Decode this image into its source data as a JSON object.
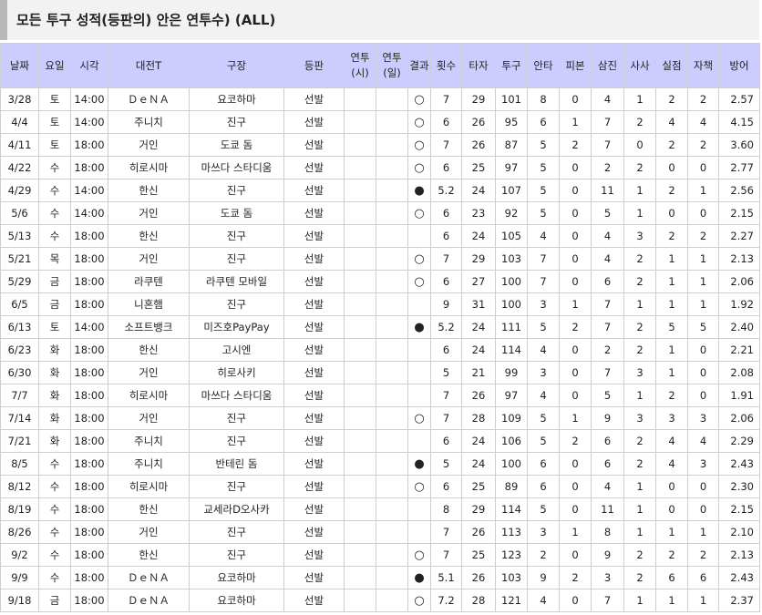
{
  "title": "모든 투구 성적(등판의) 안은 연투수) (ALL)",
  "table": {
    "headers": [
      "날짜",
      "요일",
      "시각",
      "대전T",
      "구장",
      "등판",
      "연투\n(시)",
      "연투\n(일)",
      "결과",
      "횟수",
      "타자",
      "투구",
      "안타",
      "피본",
      "삼진",
      "사사",
      "실점",
      "자책",
      "방어"
    ],
    "rows": [
      [
        "3/28",
        "토",
        "14:00",
        "ＤｅＮＡ",
        "요코하마",
        "선발",
        null,
        null,
        "○",
        "7",
        "29",
        "101",
        "8",
        "0",
        "4",
        "1",
        "2",
        "2",
        "2.57"
      ],
      [
        "4/4",
        "토",
        "14:00",
        "주니치",
        "진구",
        "선발",
        null,
        null,
        "○",
        "6",
        "26",
        "95",
        "6",
        "1",
        "7",
        "2",
        "4",
        "4",
        "4.15"
      ],
      [
        "4/11",
        "토",
        "18:00",
        "거인",
        "도쿄 돔",
        "선발",
        null,
        null,
        "○",
        "7",
        "26",
        "87",
        "5",
        "2",
        "7",
        "0",
        "2",
        "2",
        "3.60"
      ],
      [
        "4/22",
        "수",
        "18:00",
        "히로시마",
        "마쓰다 스타디움",
        "선발",
        null,
        null,
        "○",
        "6",
        "25",
        "97",
        "5",
        "0",
        "2",
        "2",
        "0",
        "0",
        "2.77"
      ],
      [
        "4/29",
        "수",
        "14:00",
        "한신",
        "진구",
        "선발",
        null,
        null,
        "●",
        "5.2",
        "24",
        "107",
        "5",
        "0",
        "11",
        "1",
        "2",
        "1",
        "2.56"
      ],
      [
        "5/6",
        "수",
        "14:00",
        "거인",
        "도쿄 돔",
        "선발",
        null,
        null,
        "○",
        "6",
        "23",
        "92",
        "5",
        "0",
        "5",
        "1",
        "0",
        "0",
        "2.15"
      ],
      [
        "5/13",
        "수",
        "18:00",
        "한신",
        "진구",
        "선발",
        null,
        null,
        null,
        "6",
        "24",
        "105",
        "4",
        "0",
        "4",
        "3",
        "2",
        "2",
        "2.27"
      ],
      [
        "5/21",
        "목",
        "18:00",
        "거인",
        "진구",
        "선발",
        null,
        null,
        "○",
        "7",
        "29",
        "103",
        "7",
        "0",
        "4",
        "2",
        "1",
        "1",
        "2.13"
      ],
      [
        "5/29",
        "금",
        "18:00",
        "라쿠텐",
        "라쿠텐 모바일",
        "선발",
        null,
        null,
        "○",
        "6",
        "27",
        "100",
        "7",
        "0",
        "6",
        "2",
        "1",
        "1",
        "2.06"
      ],
      [
        "6/5",
        "금",
        "18:00",
        "니혼햄",
        "진구",
        "선발",
        null,
        null,
        null,
        "9",
        "31",
        "100",
        "3",
        "1",
        "7",
        "1",
        "1",
        "1",
        "1.92"
      ],
      [
        "6/13",
        "토",
        "14:00",
        "소프트뱅크",
        "미즈호PayPay",
        "선발",
        null,
        null,
        "●",
        "5.2",
        "24",
        "111",
        "5",
        "2",
        "7",
        "2",
        "5",
        "5",
        "2.40"
      ],
      [
        "6/23",
        "화",
        "18:00",
        "한신",
        "고시엔",
        "선발",
        null,
        null,
        null,
        "6",
        "24",
        "114",
        "4",
        "0",
        "2",
        "2",
        "1",
        "0",
        "2.21"
      ],
      [
        "6/30",
        "화",
        "18:00",
        "거인",
        "히로사키",
        "선발",
        null,
        null,
        null,
        "5",
        "21",
        "99",
        "3",
        "0",
        "7",
        "3",
        "1",
        "0",
        "2.08"
      ],
      [
        "7/7",
        "화",
        "18:00",
        "히로시마",
        "마쓰다 스타디움",
        "선발",
        null,
        null,
        null,
        "7",
        "26",
        "97",
        "4",
        "0",
        "5",
        "1",
        "2",
        "0",
        "1.91"
      ],
      [
        "7/14",
        "화",
        "18:00",
        "거인",
        "진구",
        "선발",
        null,
        null,
        "○",
        "7",
        "28",
        "109",
        "5",
        "1",
        "9",
        "3",
        "3",
        "3",
        "2.06"
      ],
      [
        "7/21",
        "화",
        "18:00",
        "주니치",
        "진구",
        "선발",
        null,
        null,
        null,
        "6",
        "24",
        "106",
        "5",
        "2",
        "6",
        "2",
        "4",
        "4",
        "2.29"
      ],
      [
        "8/5",
        "수",
        "18:00",
        "주니치",
        "반테린 돔",
        "선발",
        null,
        null,
        "●",
        "5",
        "24",
        "100",
        "6",
        "0",
        "6",
        "2",
        "4",
        "3",
        "2.43"
      ],
      [
        "8/12",
        "수",
        "18:00",
        "히로시마",
        "진구",
        "선발",
        null,
        null,
        "○",
        "6",
        "25",
        "89",
        "6",
        "0",
        "4",
        "1",
        "0",
        "0",
        "2.30"
      ],
      [
        "8/19",
        "수",
        "18:00",
        "한신",
        "교세라D오사카",
        "선발",
        null,
        null,
        null,
        "8",
        "29",
        "114",
        "5",
        "0",
        "11",
        "1",
        "0",
        "0",
        "2.15"
      ],
      [
        "8/26",
        "수",
        "18:00",
        "거인",
        "진구",
        "선발",
        null,
        null,
        null,
        "7",
        "26",
        "113",
        "3",
        "1",
        "8",
        "1",
        "1",
        "1",
        "2.10"
      ],
      [
        "9/2",
        "수",
        "18:00",
        "한신",
        "진구",
        "선발",
        null,
        null,
        "○",
        "7",
        "25",
        "123",
        "2",
        "0",
        "9",
        "2",
        "2",
        "2",
        "2.13"
      ],
      [
        "9/9",
        "수",
        "18:00",
        "ＤｅＮＡ",
        "요코하마",
        "선발",
        null,
        null,
        "●",
        "5.1",
        "26",
        "103",
        "9",
        "2",
        "3",
        "2",
        "6",
        "6",
        "2.43"
      ],
      [
        "9/18",
        "금",
        "18:00",
        "ＤｅＮＡ",
        "요코하마",
        "선발",
        null,
        null,
        "○",
        "7.2",
        "28",
        "121",
        "4",
        "0",
        "7",
        "1",
        "1",
        "1",
        "2.37"
      ]
    ]
  }
}
